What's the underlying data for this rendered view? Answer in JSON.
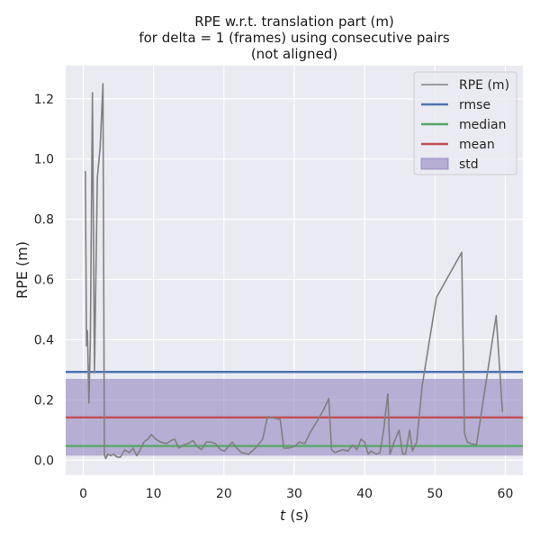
{
  "chart_data": {
    "type": "line",
    "title_lines": [
      "RPE w.r.t. translation part (m)",
      "for delta = 1 (frames) using consecutive pairs",
      "(not aligned)"
    ],
    "xlabel_italic": "t",
    "xlabel_unit": " (s)",
    "ylabel": "RPE (m)",
    "xlim": [
      -2.5,
      62.5
    ],
    "ylim": [
      -0.05,
      1.31
    ],
    "xticks": [
      0,
      10,
      20,
      30,
      40,
      50,
      60
    ],
    "yticks": [
      0.0,
      0.2,
      0.4,
      0.6,
      0.8,
      1.0,
      1.2
    ],
    "grid": true,
    "legend_placement": "top-right",
    "series": [
      {
        "name": "RPE (m)",
        "color": "#808080",
        "x": [
          0.3,
          0.45,
          0.6,
          0.8,
          1.0,
          1.3,
          1.6,
          2.0,
          2.4,
          2.8,
          3.0,
          3.2,
          3.5,
          3.9,
          4.3,
          4.8,
          5.3,
          5.9,
          6.5,
          7.1,
          7.6,
          8.0,
          8.6,
          9.2,
          9.7,
          10.3,
          11.0,
          11.8,
          12.5,
          13.0,
          13.6,
          14.2,
          14.9,
          15.6,
          16.2,
          16.8,
          17.5,
          18.1,
          18.8,
          19.5,
          20.1,
          20.6,
          21.2,
          21.8,
          22.5,
          23.5,
          24.5,
          25.5,
          26.2,
          27.0,
          28.0,
          28.5,
          29.2,
          30.0,
          30.7,
          31.5,
          32.2,
          33.0,
          34.0,
          34.9,
          35.3,
          35.8,
          36.3,
          36.9,
          37.6,
          38.3,
          38.9,
          39.5,
          40.0,
          40.5,
          40.9,
          41.3,
          41.7,
          42.2,
          42.7,
          43.3,
          43.6,
          44.2,
          44.9,
          45.4,
          45.8,
          46.4,
          46.8,
          47.4,
          48.2,
          50.2,
          53.8,
          54.2,
          54.6,
          55.2,
          55.9,
          58.7,
          59.6
        ],
        "values": [
          0.96,
          0.38,
          0.43,
          0.19,
          0.4,
          1.22,
          0.29,
          0.94,
          1.04,
          1.25,
          0.02,
          0.005,
          0.02,
          0.015,
          0.02,
          0.01,
          0.01,
          0.035,
          0.025,
          0.04,
          0.015,
          0.03,
          0.06,
          0.07,
          0.085,
          0.07,
          0.06,
          0.055,
          0.065,
          0.07,
          0.04,
          0.05,
          0.055,
          0.065,
          0.045,
          0.035,
          0.06,
          0.06,
          0.055,
          0.035,
          0.03,
          0.045,
          0.06,
          0.04,
          0.025,
          0.02,
          0.04,
          0.07,
          0.145,
          0.14,
          0.135,
          0.04,
          0.04,
          0.045,
          0.06,
          0.055,
          0.09,
          0.12,
          0.16,
          0.205,
          0.035,
          0.025,
          0.03,
          0.035,
          0.03,
          0.05,
          0.035,
          0.07,
          0.06,
          0.02,
          0.03,
          0.025,
          0.02,
          0.025,
          0.1,
          0.22,
          0.02,
          0.06,
          0.1,
          0.02,
          0.02,
          0.1,
          0.03,
          0.06,
          0.25,
          0.54,
          0.69,
          0.09,
          0.06,
          0.055,
          0.05,
          0.48,
          0.16
        ]
      }
    ],
    "hlines": [
      {
        "name": "rmse",
        "value": 0.293,
        "color": "#4c72b0"
      },
      {
        "name": "median",
        "value": 0.047,
        "color": "#55a868"
      },
      {
        "name": "mean",
        "value": 0.142,
        "color": "#c44e52"
      }
    ],
    "std_band": {
      "name": "std",
      "low": 0.015,
      "high": 0.27,
      "color": "#8172b3"
    }
  }
}
